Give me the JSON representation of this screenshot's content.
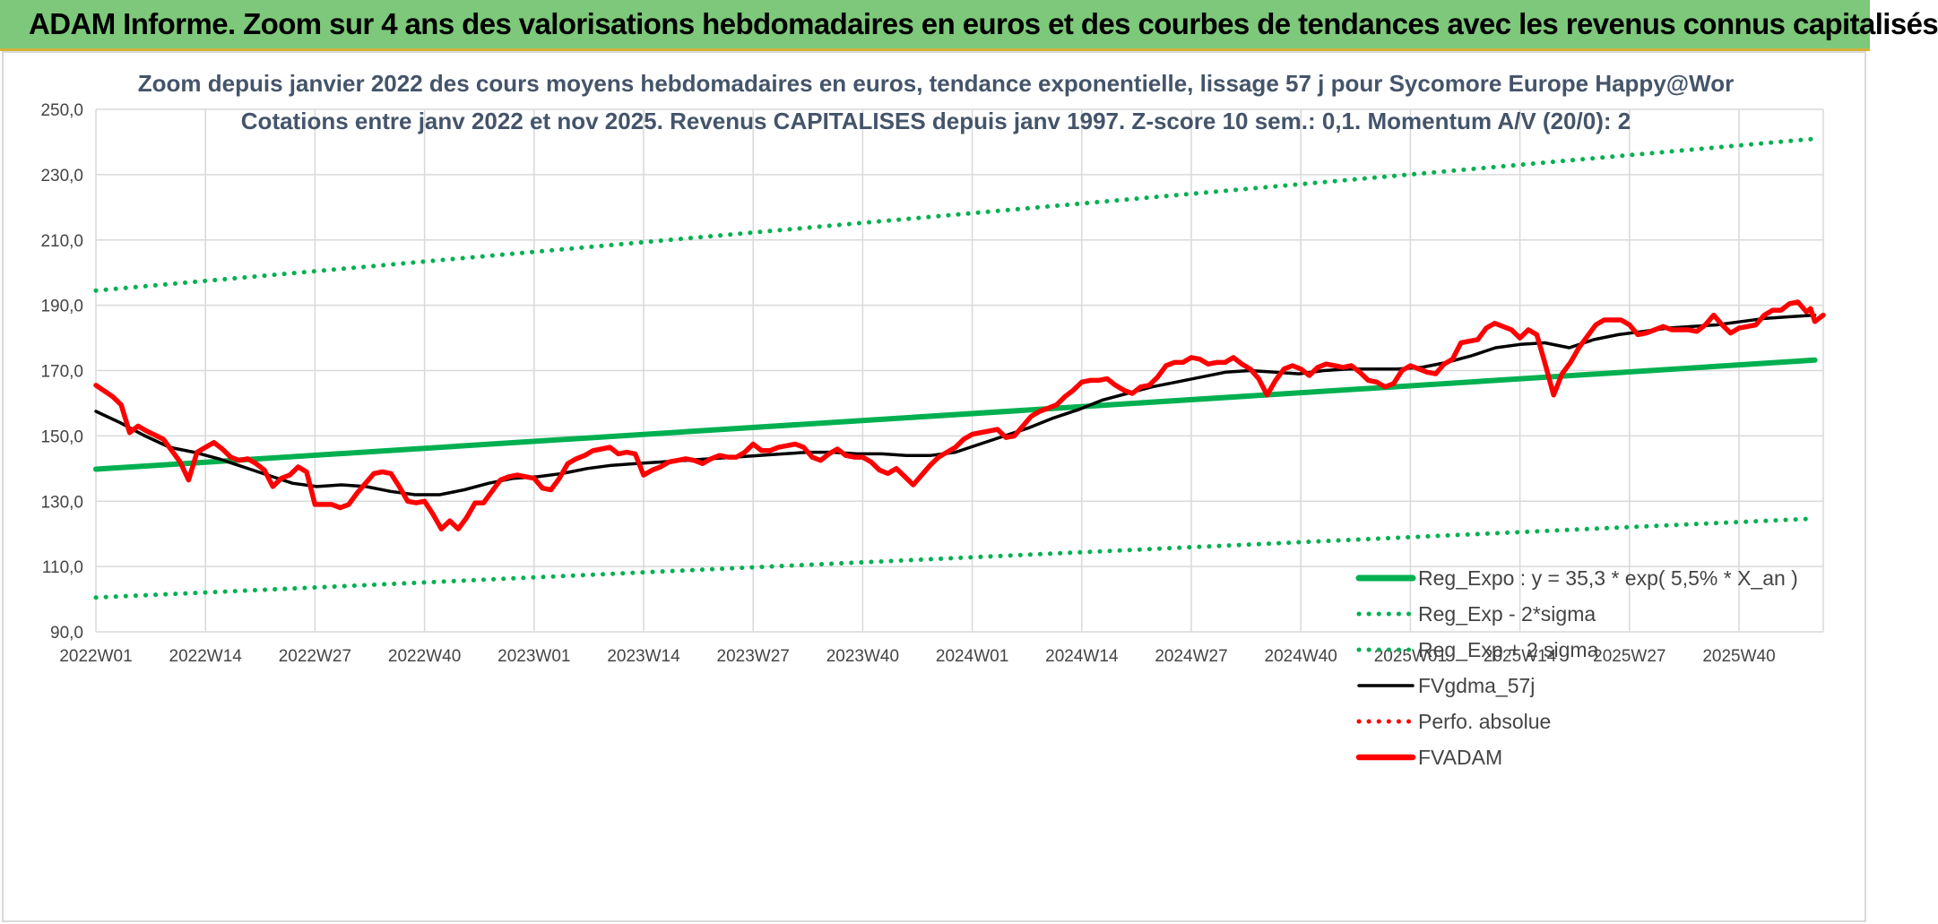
{
  "banner": {
    "title": "ADAM Informe. Zoom sur 4 ans des valorisations hebdomadaires en euros et des courbes de tendances avec les revenus connus capitalisés"
  },
  "chart_data": {
    "type": "line",
    "title": "Zoom depuis janvier 2022 des cours moyens hebdomadaires en euros, tendance exponentielle, lissage 57 j pour Sycomore Europe Happy@Wor",
    "subtitle": "Cotations entre janv 2022 et nov 2025. Revenus CAPITALISES depuis janv 1997. Z-score 10 sem.: 0,1. Momentum A/V (20/0): 2",
    "ylim": [
      90,
      250
    ],
    "yticks": [
      "90,0",
      "110,0",
      "130,0",
      "150,0",
      "170,0",
      "190,0",
      "210,0",
      "230,0",
      "250,0"
    ],
    "x_tick_labels": [
      "2022W01",
      "2022W14",
      "2022W27",
      "2022W40",
      "2023W01",
      "2023W14",
      "2023W27",
      "2023W40",
      "2024W01",
      "2024W14",
      "2024W27",
      "2024W40",
      "2025W01",
      "2025W14",
      "2025W27",
      "2025W40"
    ],
    "n_weeks": 205,
    "grid": true,
    "legend_position": "bottom-right",
    "series": [
      {
        "name": "Reg_Expo : y = 35,3 * exp( 5,5% *  X_an )",
        "color": "#00b050",
        "style": "solid-thick",
        "points": [
          [
            0,
            139.8
          ],
          [
            204,
            173.2
          ]
        ]
      },
      {
        "name": "Reg_Exp - 2*sigma",
        "color": "#00b050",
        "style": "dotted",
        "points": [
          [
            0,
            100.5
          ],
          [
            204,
            124.7
          ]
        ]
      },
      {
        "name": "Reg_Exp + 2 sigma",
        "color": "#00b050",
        "style": "dotted",
        "points": [
          [
            0,
            194.5
          ],
          [
            204,
            241.0
          ]
        ]
      },
      {
        "name": "FVgdma_57j",
        "color": "#000000",
        "style": "solid",
        "points": [
          [
            0,
            157.5
          ],
          [
            4,
            154
          ],
          [
            8,
            150
          ],
          [
            12,
            146.5
          ],
          [
            16,
            145
          ],
          [
            20,
            143
          ],
          [
            24,
            140.5
          ],
          [
            28,
            138
          ],
          [
            32,
            135.5
          ],
          [
            36,
            134.5
          ],
          [
            40,
            135
          ],
          [
            44,
            134.5
          ],
          [
            48,
            133
          ],
          [
            52,
            132
          ],
          [
            56,
            132
          ],
          [
            60,
            133.5
          ],
          [
            64,
            135.5
          ],
          [
            68,
            137
          ],
          [
            72,
            137.5
          ],
          [
            76,
            138.5
          ],
          [
            80,
            140
          ],
          [
            84,
            141
          ],
          [
            88,
            141.5
          ],
          [
            92,
            142
          ],
          [
            96,
            142.5
          ],
          [
            100,
            143
          ],
          [
            104,
            143.5
          ],
          [
            108,
            144
          ],
          [
            112,
            144.5
          ],
          [
            116,
            145
          ],
          [
            120,
            145
          ],
          [
            124,
            144.5
          ],
          [
            128,
            144.5
          ],
          [
            132,
            144
          ],
          [
            136,
            144
          ],
          [
            140,
            145
          ],
          [
            144,
            147.5
          ],
          [
            148,
            150
          ],
          [
            152,
            152.5
          ],
          [
            156,
            155.5
          ],
          [
            160,
            158
          ],
          [
            164,
            161
          ],
          [
            168,
            163
          ],
          [
            172,
            165
          ],
          [
            176,
            166.5
          ],
          [
            180,
            168
          ],
          [
            184,
            169.5
          ],
          [
            188,
            170
          ],
          [
            192,
            169.5
          ],
          [
            196,
            169
          ],
          [
            200,
            170
          ],
          [
            204,
            170.5
          ],
          [
            208,
            170.5
          ],
          [
            212,
            170.5
          ],
          [
            216,
            171
          ],
          [
            220,
            172.5
          ],
          [
            224,
            174.5
          ],
          [
            228,
            177
          ],
          [
            232,
            178
          ],
          [
            236,
            178.5
          ],
          [
            240,
            177
          ],
          [
            244,
            179.5
          ],
          [
            248,
            181
          ],
          [
            252,
            182
          ],
          [
            256,
            183
          ],
          [
            260,
            183.5
          ],
          [
            264,
            184
          ],
          [
            268,
            185
          ],
          [
            272,
            186
          ],
          [
            276,
            186.5
          ],
          [
            280,
            187
          ]
        ],
        "x_scale": "x/280*204"
      },
      {
        "name": "Perfo. absolue",
        "color": "#ff0000",
        "style": "dotted",
        "points": []
      },
      {
        "name": "FVADAM",
        "color": "#ff0000",
        "style": "solid-thick",
        "points": [
          [
            0,
            165.5
          ],
          [
            2,
            162
          ],
          [
            3,
            159.5
          ],
          [
            4,
            151
          ],
          [
            5,
            153
          ],
          [
            6,
            151.5
          ],
          [
            8,
            149
          ],
          [
            9,
            145.5
          ],
          [
            10,
            142
          ],
          [
            11,
            136.5
          ],
          [
            12,
            145
          ],
          [
            13,
            146.5
          ],
          [
            14,
            148
          ],
          [
            15,
            146
          ],
          [
            16,
            143.5
          ],
          [
            17,
            142.5
          ],
          [
            18,
            143
          ],
          [
            19,
            141.5
          ],
          [
            20,
            139.5
          ],
          [
            21,
            134.5
          ],
          [
            22,
            137
          ],
          [
            23,
            138
          ],
          [
            24,
            140.5
          ],
          [
            25,
            139
          ],
          [
            26,
            129
          ],
          [
            27,
            129
          ],
          [
            28,
            129
          ],
          [
            29,
            128
          ],
          [
            30,
            129
          ],
          [
            31,
            132.5
          ],
          [
            32,
            135.5
          ],
          [
            33,
            138.5
          ],
          [
            34,
            139
          ],
          [
            35,
            138.5
          ],
          [
            36,
            134.5
          ],
          [
            37,
            130
          ],
          [
            38,
            129.5
          ],
          [
            39,
            130
          ],
          [
            40,
            126
          ],
          [
            41,
            121.5
          ],
          [
            42,
            124
          ],
          [
            43,
            121.5
          ],
          [
            44,
            125
          ],
          [
            45,
            129.5
          ],
          [
            46,
            129.5
          ],
          [
            47,
            133
          ],
          [
            48,
            136.5
          ],
          [
            49,
            137.5
          ],
          [
            50,
            138
          ],
          [
            51,
            137.5
          ],
          [
            52,
            137
          ],
          [
            53,
            134
          ],
          [
            54,
            133.5
          ],
          [
            55,
            137
          ],
          [
            56,
            141.5
          ],
          [
            57,
            143
          ],
          [
            58,
            144
          ],
          [
            59,
            145.5
          ],
          [
            60,
            146
          ],
          [
            61,
            146.5
          ],
          [
            62,
            144.5
          ],
          [
            63,
            145
          ],
          [
            64,
            144.5
          ],
          [
            65,
            138
          ],
          [
            66,
            139.5
          ],
          [
            67,
            140.5
          ],
          [
            68,
            142
          ],
          [
            69,
            142.5
          ],
          [
            70,
            143
          ],
          [
            71,
            142.5
          ],
          [
            72,
            141.5
          ],
          [
            73,
            143
          ],
          [
            74,
            144
          ],
          [
            75,
            143.5
          ],
          [
            76,
            143.5
          ],
          [
            77,
            145
          ],
          [
            78,
            147.5
          ],
          [
            79,
            145.5
          ],
          [
            80,
            145.5
          ],
          [
            81,
            146.5
          ],
          [
            82,
            147
          ],
          [
            83,
            147.5
          ],
          [
            84,
            146.5
          ],
          [
            85,
            143.5
          ],
          [
            86,
            142.5
          ],
          [
            87,
            144.5
          ],
          [
            88,
            146
          ],
          [
            89,
            144
          ],
          [
            90,
            143.5
          ],
          [
            91,
            143.5
          ],
          [
            92,
            142
          ],
          [
            93,
            139.5
          ],
          [
            94,
            138.5
          ],
          [
            95,
            140
          ],
          [
            96,
            137.5
          ],
          [
            97,
            135
          ],
          [
            98,
            138
          ],
          [
            99,
            141
          ],
          [
            100,
            143.5
          ],
          [
            101,
            145
          ],
          [
            102,
            146.5
          ],
          [
            103,
            149
          ],
          [
            104,
            150.5
          ],
          [
            105,
            151
          ],
          [
            106,
            151.5
          ],
          [
            107,
            152
          ],
          [
            108,
            149.5
          ],
          [
            109,
            150
          ],
          [
            110,
            153
          ],
          [
            111,
            156
          ],
          [
            112,
            157.5
          ],
          [
            113,
            158.5
          ],
          [
            114,
            159.5
          ],
          [
            115,
            162
          ],
          [
            116,
            164
          ],
          [
            117,
            166.5
          ],
          [
            118,
            167
          ],
          [
            119,
            167
          ],
          [
            120,
            167.5
          ],
          [
            121,
            165.5
          ],
          [
            122,
            164
          ],
          [
            123,
            163
          ],
          [
            124,
            165
          ],
          [
            125,
            165.5
          ],
          [
            126,
            168
          ],
          [
            127,
            171.5
          ],
          [
            128,
            172.5
          ],
          [
            129,
            172.5
          ],
          [
            130,
            174
          ],
          [
            131,
            173.5
          ],
          [
            132,
            172
          ],
          [
            133,
            172.5
          ],
          [
            134,
            172.5
          ],
          [
            135,
            174
          ],
          [
            136,
            172
          ],
          [
            137,
            170.5
          ],
          [
            138,
            167.5
          ],
          [
            139,
            162.5
          ],
          [
            140,
            167
          ],
          [
            141,
            170.5
          ],
          [
            142,
            171.5
          ],
          [
            143,
            170.5
          ],
          [
            144,
            168.5
          ],
          [
            145,
            171
          ],
          [
            146,
            172
          ],
          [
            147,
            171.5
          ],
          [
            148,
            171
          ],
          [
            149,
            171.5
          ],
          [
            150,
            169.5
          ],
          [
            151,
            167
          ],
          [
            152,
            166.5
          ],
          [
            153,
            165
          ],
          [
            154,
            166
          ],
          [
            155,
            170
          ],
          [
            156,
            171.5
          ],
          [
            157,
            170.5
          ],
          [
            158,
            169.5
          ],
          [
            159,
            169
          ],
          [
            160,
            172
          ],
          [
            161,
            173.5
          ],
          [
            162,
            178.5
          ],
          [
            163,
            179
          ],
          [
            164,
            179.5
          ],
          [
            165,
            183
          ],
          [
            166,
            184.5
          ],
          [
            167,
            183.5
          ],
          [
            168,
            182.5
          ],
          [
            169,
            180
          ],
          [
            170,
            182.5
          ],
          [
            171,
            181
          ],
          [
            172,
            172
          ],
          [
            173,
            162.5
          ],
          [
            174,
            169
          ],
          [
            175,
            172.5
          ],
          [
            176,
            177
          ],
          [
            177,
            180.5
          ],
          [
            178,
            184
          ],
          [
            179,
            185.5
          ],
          [
            180,
            185.5
          ],
          [
            181,
            185.5
          ],
          [
            182,
            184
          ],
          [
            183,
            181
          ],
          [
            184,
            181.5
          ],
          [
            185,
            182.5
          ],
          [
            186,
            183.5
          ],
          [
            187,
            182.5
          ],
          [
            188,
            182.5
          ],
          [
            189,
            182.5
          ],
          [
            190,
            182
          ],
          [
            191,
            184
          ],
          [
            192,
            187
          ],
          [
            193,
            184
          ],
          [
            194,
            181.5
          ],
          [
            195,
            183
          ],
          [
            196,
            183.5
          ],
          [
            197,
            184
          ],
          [
            198,
            187
          ],
          [
            199,
            188.5
          ],
          [
            200,
            188.5
          ],
          [
            201,
            190.5
          ],
          [
            202,
            191
          ],
          [
            203,
            188
          ],
          [
            203.5,
            189
          ],
          [
            204,
            185
          ],
          [
            205,
            187
          ]
        ]
      }
    ]
  }
}
